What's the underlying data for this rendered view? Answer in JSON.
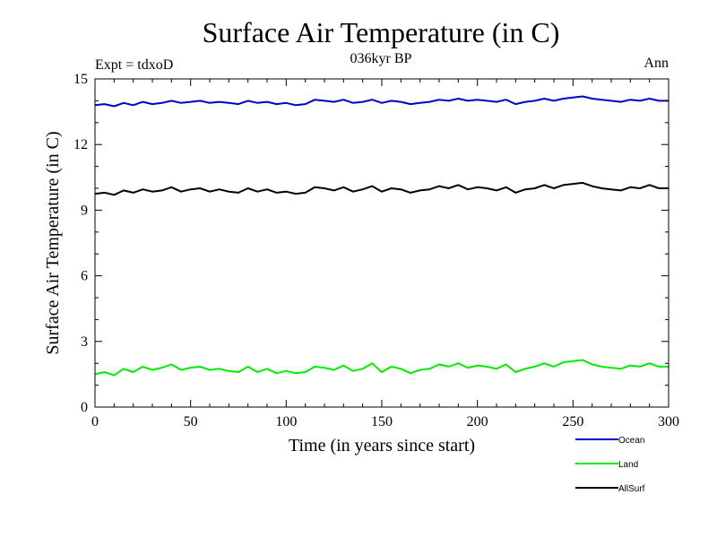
{
  "chart_data": {
    "type": "line",
    "title": "Surface Air Temperature (in C)",
    "subtitle": "036kyr BP",
    "left_label": "Expt = tdxoD",
    "right_label": "Ann",
    "xlabel": "Time (in years since start)",
    "ylabel": "Surface Air Temperature (in C)",
    "xlim": [
      0,
      300
    ],
    "ylim": [
      0,
      15
    ],
    "xticks": [
      0,
      50,
      100,
      150,
      200,
      250,
      300
    ],
    "yticks": [
      0,
      3,
      6,
      9,
      12,
      15
    ],
    "grid": false,
    "legend_position": "bottom-right",
    "x_start": 0,
    "x_step": 5,
    "series": [
      {
        "name": "Ocean",
        "color": "#0000cc",
        "values": [
          13.8,
          13.85,
          13.75,
          13.9,
          13.8,
          13.95,
          13.85,
          13.9,
          14.0,
          13.9,
          13.95,
          14.0,
          13.9,
          13.95,
          13.9,
          13.85,
          14.0,
          13.9,
          13.95,
          13.85,
          13.9,
          13.8,
          13.85,
          14.05,
          14.0,
          13.95,
          14.05,
          13.9,
          13.95,
          14.05,
          13.9,
          14.0,
          13.95,
          13.85,
          13.9,
          13.95,
          14.05,
          14.0,
          14.1,
          14.0,
          14.05,
          14.0,
          13.95,
          14.05,
          13.85,
          13.95,
          14.0,
          14.1,
          14.0,
          14.1,
          14.15,
          14.2,
          14.1,
          14.05,
          14.0,
          13.95,
          14.05,
          14.0,
          14.1,
          14.0,
          14.0
        ]
      },
      {
        "name": "Land",
        "color": "#00ee00",
        "values": [
          1.5,
          1.6,
          1.45,
          1.75,
          1.6,
          1.85,
          1.7,
          1.8,
          1.95,
          1.7,
          1.8,
          1.85,
          1.7,
          1.75,
          1.65,
          1.6,
          1.85,
          1.6,
          1.75,
          1.55,
          1.65,
          1.55,
          1.6,
          1.85,
          1.8,
          1.7,
          1.9,
          1.65,
          1.75,
          2.0,
          1.6,
          1.85,
          1.75,
          1.55,
          1.7,
          1.75,
          1.95,
          1.85,
          2.0,
          1.8,
          1.9,
          1.85,
          1.75,
          1.95,
          1.6,
          1.75,
          1.85,
          2.0,
          1.85,
          2.05,
          2.1,
          2.15,
          1.95,
          1.85,
          1.8,
          1.75,
          1.9,
          1.85,
          2.0,
          1.85,
          1.85
        ]
      },
      {
        "name": "AllSurf",
        "color": "#000000",
        "values": [
          9.75,
          9.8,
          9.7,
          9.9,
          9.8,
          9.95,
          9.85,
          9.9,
          10.05,
          9.85,
          9.95,
          10.0,
          9.85,
          9.95,
          9.85,
          9.8,
          10.0,
          9.85,
          9.95,
          9.8,
          9.85,
          9.75,
          9.8,
          10.05,
          10.0,
          9.9,
          10.05,
          9.85,
          9.95,
          10.1,
          9.85,
          10.0,
          9.95,
          9.8,
          9.9,
          9.95,
          10.1,
          10.0,
          10.15,
          9.95,
          10.05,
          10.0,
          9.9,
          10.05,
          9.8,
          9.95,
          10.0,
          10.15,
          10.0,
          10.15,
          10.2,
          10.25,
          10.1,
          10.0,
          9.95,
          9.9,
          10.05,
          10.0,
          10.15,
          10.0,
          10.0
        ]
      }
    ]
  }
}
